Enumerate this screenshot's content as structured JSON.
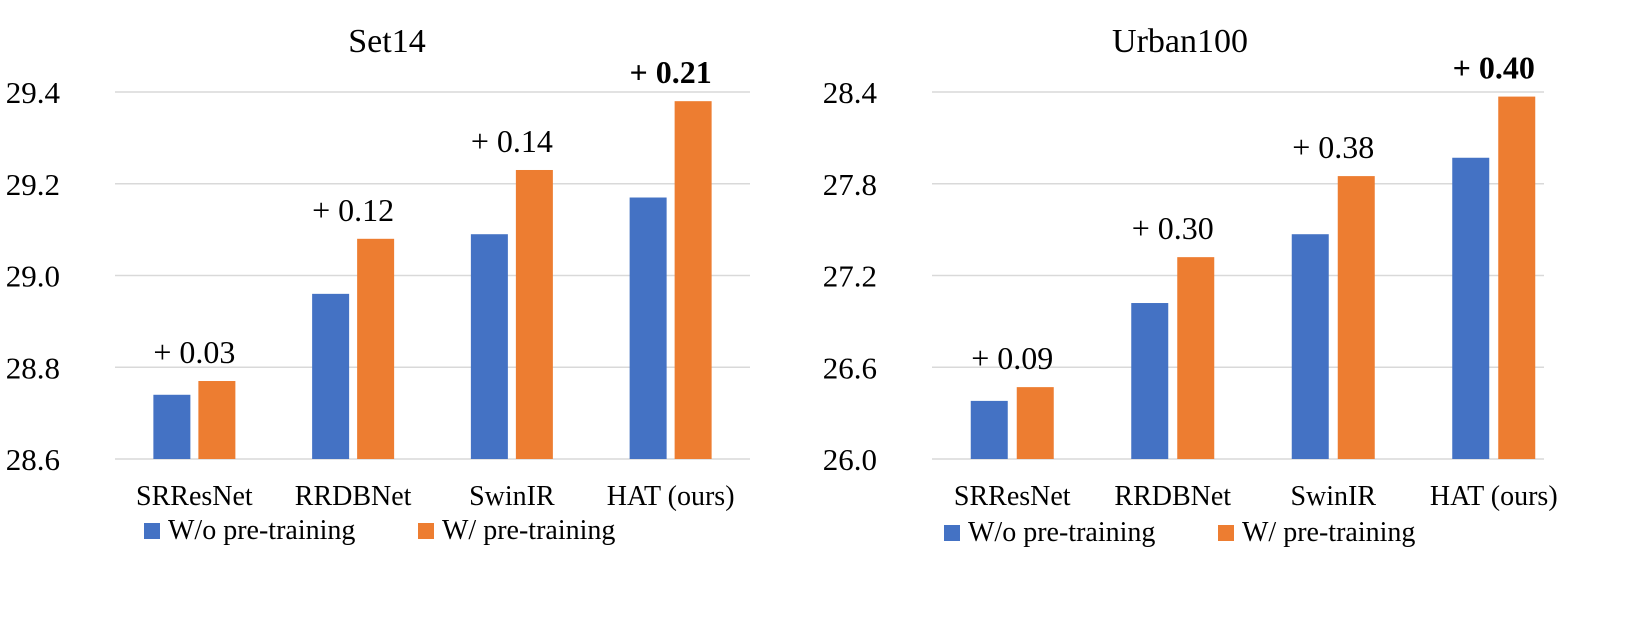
{
  "chart_data": [
    {
      "type": "bar",
      "title": "Set14",
      "categories": [
        "SRResNet",
        "RRDBNet",
        "SwinIR",
        "HAT (ours)"
      ],
      "series": [
        {
          "name": "W/o pre-training",
          "color": "#4472c4",
          "values": [
            28.74,
            28.96,
            29.09,
            29.17
          ]
        },
        {
          "name": "W/ pre-training",
          "color": "#ed7d31",
          "values": [
            28.77,
            29.08,
            29.23,
            29.38
          ]
        }
      ],
      "annotations": [
        "+ 0.03",
        "+ 0.12",
        "+ 0.14",
        "+ 0.21"
      ],
      "annotation_bold": [
        false,
        false,
        false,
        true
      ],
      "yticks": [
        "28.6",
        "28.8",
        "29.0",
        "29.2",
        "29.4"
      ],
      "ylim": [
        28.6,
        29.4
      ],
      "grid": true,
      "legend": "bottom"
    },
    {
      "type": "bar",
      "title": "Urban100",
      "categories": [
        "SRResNet",
        "RRDBNet",
        "SwinIR",
        "HAT (ours)"
      ],
      "series": [
        {
          "name": "W/o pre-training",
          "color": "#4472c4",
          "values": [
            26.38,
            27.02,
            27.47,
            27.97
          ]
        },
        {
          "name": "W/ pre-training",
          "color": "#ed7d31",
          "values": [
            26.47,
            27.32,
            27.85,
            28.37
          ]
        }
      ],
      "annotations": [
        "+ 0.09",
        "+ 0.30",
        "+ 0.38",
        "+ 0.40"
      ],
      "annotation_bold": [
        false,
        false,
        false,
        true
      ],
      "yticks": [
        "26.0",
        "26.6",
        "27.2",
        "27.8",
        "28.4"
      ],
      "ylim": [
        26.0,
        28.4
      ],
      "grid": true,
      "legend": "bottom"
    }
  ]
}
